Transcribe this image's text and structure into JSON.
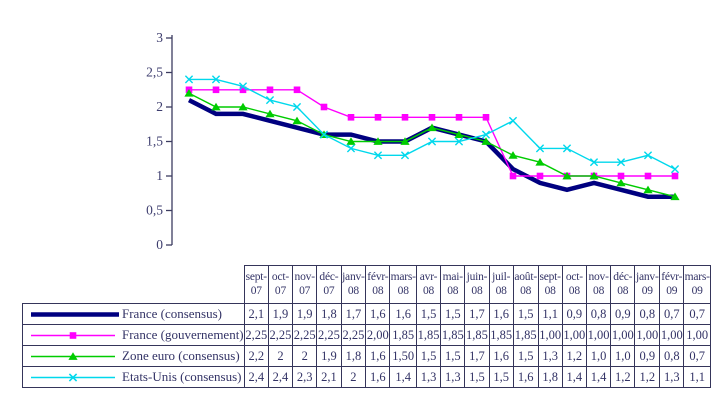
{
  "chart_data": {
    "type": "line",
    "title": "",
    "xlabel": "",
    "ylabel": "",
    "grid": false,
    "legend_position": "table-first-column",
    "categories": [
      "sept-07",
      "oct-07",
      "nov-07",
      "déc-07",
      "janv-08",
      "févr-08",
      "mars-08",
      "avr-08",
      "mai-08",
      "juin-08",
      "juil-08",
      "août-08",
      "sept-08",
      "oct-08",
      "nov-08",
      "déc-08",
      "janv-09",
      "févr-09",
      "mars-09"
    ],
    "y_axis": {
      "min": 0,
      "max": 3,
      "ticks": [
        "3",
        "2,5",
        "2",
        "1,5",
        "1",
        "0,5",
        "0"
      ]
    },
    "series": [
      {
        "name": "France (consensus)",
        "color": "#000080",
        "marker": "none",
        "values": [
          2.1,
          1.9,
          1.9,
          1.8,
          1.7,
          1.6,
          1.6,
          1.5,
          1.5,
          1.7,
          1.6,
          1.5,
          1.1,
          0.9,
          0.8,
          0.9,
          0.8,
          0.7,
          0.7
        ],
        "display": [
          "2,1",
          "1,9",
          "1,9",
          "1,8",
          "1,7",
          "1,6",
          "1,6",
          "1,5",
          "1,5",
          "1,7",
          "1,6",
          "1,5",
          "1,1",
          "0,9",
          "0,8",
          "0,9",
          "0,8",
          "0,7",
          "0,7"
        ]
      },
      {
        "name": "France (gouvernement)",
        "color": "#FF00FF",
        "marker": "square",
        "values": [
          2.25,
          2.25,
          2.25,
          2.25,
          2.25,
          2.0,
          1.85,
          1.85,
          1.85,
          1.85,
          1.85,
          1.85,
          1.0,
          1.0,
          1.0,
          1.0,
          1.0,
          1.0,
          1.0
        ],
        "display": [
          "2,25",
          "2,25",
          "2,25",
          "2,25",
          "2,25",
          "2,00",
          "1,85",
          "1,85",
          "1,85",
          "1,85",
          "1,85",
          "1,85",
          "1,00",
          "1,00",
          "1,00",
          "1,00",
          "1,00",
          "1,00",
          "1,00"
        ]
      },
      {
        "name": "Zone euro (consensus)",
        "color": "#00CC00",
        "marker": "triangle",
        "values": [
          2.2,
          2,
          2,
          1.9,
          1.8,
          1.6,
          1.5,
          1.5,
          1.5,
          1.7,
          1.6,
          1.5,
          1.3,
          1.2,
          1.0,
          1.0,
          0.9,
          0.8,
          0.7
        ],
        "display": [
          "2,2",
          "2",
          "2",
          "1,9",
          "1,8",
          "1,6",
          "1,50",
          "1,5",
          "1,5",
          "1,7",
          "1,6",
          "1,5",
          "1,3",
          "1,2",
          "1,0",
          "1,0",
          "0,9",
          "0,8",
          "0,7"
        ]
      },
      {
        "name": "Etats-Unis (consensus)",
        "color": "#00D8EC",
        "marker": "x-cross",
        "values": [
          2.4,
          2.4,
          2.3,
          2.1,
          2,
          1.6,
          1.4,
          1.3,
          1.3,
          1.5,
          1.5,
          1.6,
          1.8,
          1.4,
          1.4,
          1.2,
          1.2,
          1.3,
          1.1
        ],
        "display": [
          "2,4",
          "2,4",
          "2,3",
          "2,1",
          "2",
          "1,6",
          "1,4",
          "1,3",
          "1,3",
          "1,5",
          "1,5",
          "1,6",
          "1,8",
          "1,4",
          "1,4",
          "1,2",
          "1,2",
          "1,3",
          "1,1"
        ]
      }
    ]
  }
}
